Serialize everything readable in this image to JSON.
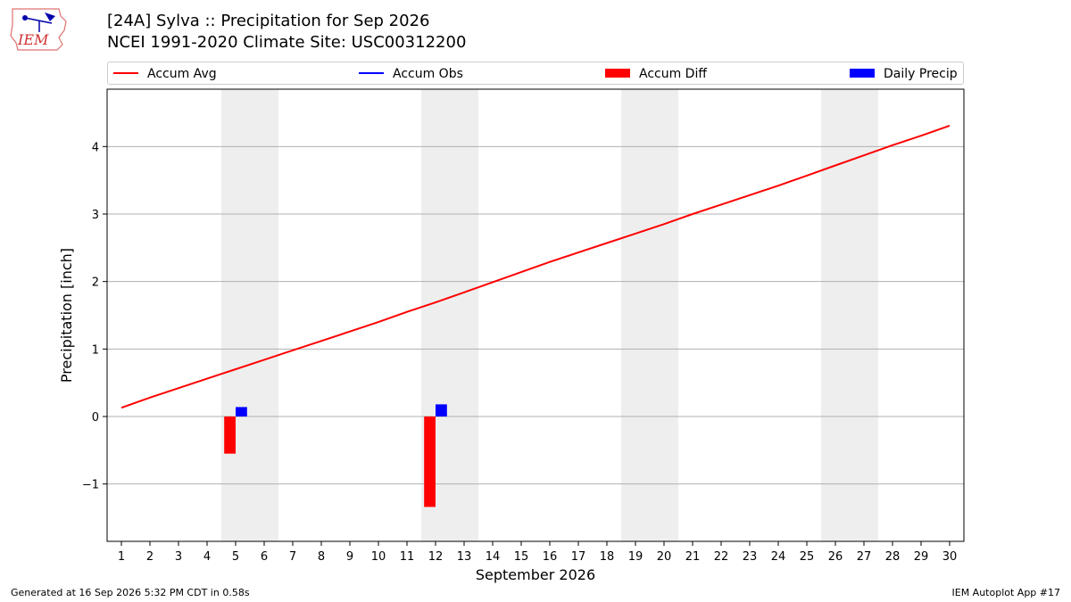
{
  "header": {
    "title_line1": "[24A] Sylva :: Precipitation for Sep 2026",
    "title_line2": "NCEI 1991-2020 Climate Site: USC00312200"
  },
  "logo": {
    "text": "IEM"
  },
  "footer": {
    "left": "Generated at 16 Sep 2026 5:32 PM CDT in 0.58s",
    "right": "IEM Autoplot App #17"
  },
  "colors": {
    "avg": "#ff0000",
    "obs": "#0000ff",
    "diff": "#ff0000",
    "precip": "#0000ff",
    "weekend": "#eeeeee",
    "grid": "#b0b0b0"
  },
  "chart_data": {
    "type": "line",
    "xlabel": "September 2026",
    "ylabel": "Precipitation [inch]",
    "xlim": [
      0.5,
      30.5
    ],
    "ylim": [
      -1.85,
      4.85
    ],
    "x_ticks": [
      1,
      2,
      3,
      4,
      5,
      6,
      7,
      8,
      9,
      10,
      11,
      12,
      13,
      14,
      15,
      16,
      17,
      18,
      19,
      20,
      21,
      22,
      23,
      24,
      25,
      26,
      27,
      28,
      29,
      30
    ],
    "y_ticks": [
      -1,
      0,
      1,
      2,
      3,
      4
    ],
    "y_tick_labels": [
      "−1",
      "0",
      "1",
      "2",
      "3",
      "4"
    ],
    "grid": "horizontal",
    "legend_position": "top",
    "weekend_shading": [
      [
        4.5,
        6.5
      ],
      [
        11.5,
        13.5
      ],
      [
        18.5,
        20.5
      ],
      [
        25.5,
        27.5
      ]
    ],
    "legend": [
      "Accum Avg",
      "Accum Obs",
      "Accum Diff",
      "Daily Precip"
    ],
    "series": [
      {
        "name": "Accum Avg",
        "kind": "line",
        "x": [
          1,
          2,
          3,
          4,
          5,
          6,
          7,
          8,
          9,
          10,
          11,
          12,
          13,
          14,
          15,
          16,
          17,
          18,
          19,
          20,
          21,
          22,
          23,
          24,
          25,
          26,
          27,
          28,
          29,
          30
        ],
        "values": [
          0.13,
          0.28,
          0.42,
          0.56,
          0.7,
          0.84,
          0.98,
          1.12,
          1.26,
          1.4,
          1.55,
          1.69,
          1.84,
          1.99,
          2.14,
          2.29,
          2.43,
          2.57,
          2.71,
          2.85,
          3.0,
          3.14,
          3.28,
          3.42,
          3.57,
          3.72,
          3.87,
          4.02,
          4.16,
          4.31
        ]
      },
      {
        "name": "Accum Diff",
        "kind": "bar",
        "x": [
          5,
          12
        ],
        "values": [
          -0.55,
          -1.34
        ]
      },
      {
        "name": "Daily Precip",
        "kind": "bar",
        "x": [
          5,
          12
        ],
        "values": [
          0.14,
          0.18
        ]
      }
    ]
  }
}
